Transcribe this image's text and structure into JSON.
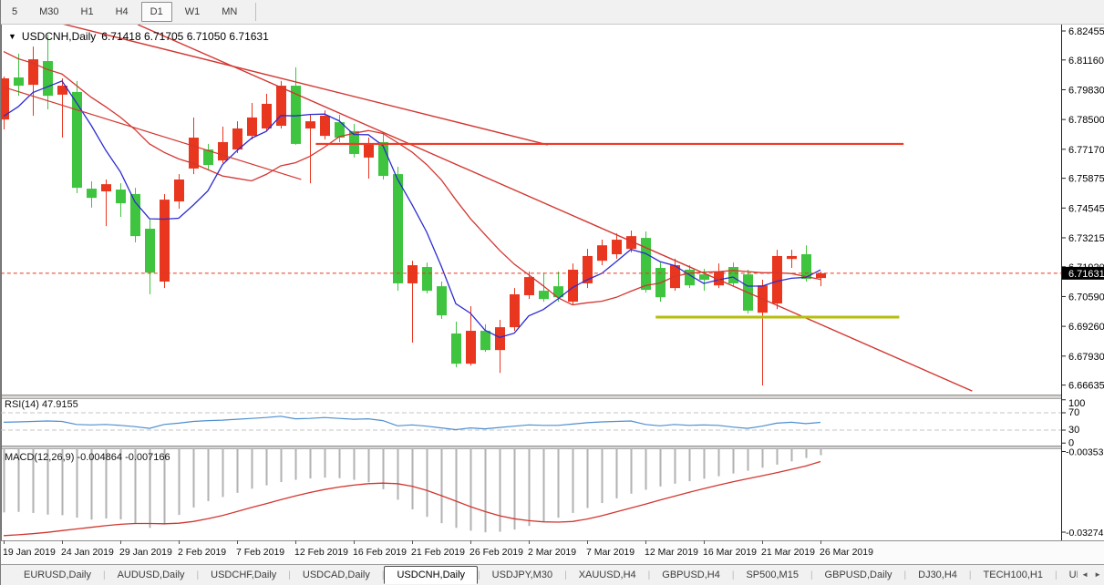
{
  "toolbar": {
    "timeframes": [
      "5",
      "M30",
      "H1",
      "H4",
      "D1",
      "W1",
      "MN"
    ],
    "active": "D1"
  },
  "chart": {
    "title_symbol": "USDCNH,Daily",
    "title_ohlc": "6.71418 6.71705 6.71050 6.71631",
    "dropdown_icon": "symbol-dropdown",
    "current_price": "6.71631",
    "price_axis": [
      "6.82455",
      "6.81160",
      "6.79830",
      "6.78500",
      "6.77170",
      "6.75875",
      "6.74545",
      "6.73215",
      "6.71920",
      "6.70590",
      "6.69260",
      "6.67930",
      "6.66635"
    ],
    "date_axis": {
      "labels": [
        "19 Jan 2019",
        "24 Jan 2019",
        "29 Jan 2019",
        "2 Feb 2019",
        "7 Feb 2019",
        "12 Feb 2019",
        "16 Feb 2019",
        "21 Feb 2019",
        "26 Feb 2019",
        "2 Mar 2019",
        "7 Mar 2019",
        "12 Mar 2019",
        "16 Mar 2019",
        "21 Mar 2019",
        "26 Mar 2019"
      ],
      "bars": [
        0,
        4,
        8,
        12,
        16,
        20,
        24,
        28,
        32,
        36,
        40,
        44,
        48,
        52,
        56
      ]
    }
  },
  "chart_data": {
    "type": "candlestick",
    "symbol": "USDCNH",
    "timeframe": "Daily",
    "ylim": [
      6.66635,
      6.82455
    ],
    "grid": false,
    "candle_columns": [
      "open",
      "high",
      "low",
      "close"
    ],
    "candles": [
      [
        6.785,
        6.8042,
        6.7806,
        6.8034
      ],
      [
        6.8038,
        6.8144,
        6.7956,
        6.8001
      ],
      [
        6.8005,
        6.8176,
        6.7867,
        6.8119
      ],
      [
        6.8111,
        6.8229,
        6.7895,
        6.7956
      ],
      [
        6.7961,
        6.8034,
        6.7769,
        6.8001
      ],
      [
        6.7973,
        6.8022,
        6.7521,
        6.7545
      ],
      [
        6.7541,
        6.7574,
        6.7456,
        6.75
      ],
      [
        6.7529,
        6.7582,
        6.7374,
        6.7561
      ],
      [
        6.7537,
        6.7565,
        6.7415,
        6.7476
      ],
      [
        6.7517,
        6.7545,
        6.7301,
        6.7329
      ],
      [
        6.7362,
        6.7403,
        6.7069,
        6.7166
      ],
      [
        6.7126,
        6.7517,
        6.7097,
        6.7492
      ],
      [
        6.7484,
        6.7606,
        6.7451,
        6.7582
      ],
      [
        6.7631,
        6.7859,
        6.7606,
        6.7769
      ],
      [
        6.7716,
        6.7741,
        6.7627,
        6.7647
      ],
      [
        6.7667,
        6.7818,
        6.7655,
        6.7749
      ],
      [
        6.7716,
        6.7842,
        6.77,
        6.781
      ],
      [
        6.7777,
        6.7924,
        6.7761,
        6.7859
      ],
      [
        6.781,
        6.7965,
        6.7798,
        6.792
      ],
      [
        6.7822,
        6.8022,
        6.781,
        6.8001
      ],
      [
        6.8001,
        6.8083,
        6.7737,
        6.7741
      ],
      [
        6.781,
        6.7871,
        6.7565,
        6.7842
      ],
      [
        6.7777,
        6.7891,
        6.7761,
        6.7867
      ],
      [
        6.7838,
        6.7871,
        6.7749,
        6.7769
      ],
      [
        6.7798,
        6.783,
        6.768,
        6.7696
      ],
      [
        6.768,
        6.7769,
        6.7586,
        6.7737
      ],
      [
        6.7749,
        6.7789,
        6.7582,
        6.7598
      ],
      [
        6.7606,
        6.7639,
        6.7085,
        6.7118
      ],
      [
        6.7118,
        6.7219,
        6.6853,
        6.7199
      ],
      [
        6.7191,
        6.7211,
        6.7073,
        6.7085
      ],
      [
        6.7105,
        6.7126,
        6.6959,
        6.6975
      ],
      [
        6.6894,
        6.6947,
        6.6743,
        6.6759
      ],
      [
        6.6759,
        6.7016,
        6.6751,
        6.6906
      ],
      [
        6.6906,
        6.6935,
        6.6812,
        6.682
      ],
      [
        6.682,
        6.6955,
        6.6718,
        6.6922
      ],
      [
        6.6922,
        6.7097,
        6.6906,
        6.7069
      ],
      [
        6.7065,
        6.7171,
        6.7048,
        6.7146
      ],
      [
        6.7085,
        6.7166,
        6.7036,
        6.7048
      ],
      [
        6.7105,
        6.7171,
        6.7036,
        6.7056
      ],
      [
        6.7036,
        6.7207,
        6.7024,
        6.7179
      ],
      [
        6.7118,
        6.7272,
        6.7097,
        6.724
      ],
      [
        6.7219,
        6.7313,
        6.7199,
        6.7288
      ],
      [
        6.7248,
        6.7341,
        6.7228,
        6.7313
      ],
      [
        6.7272,
        6.7354,
        6.7256,
        6.7329
      ],
      [
        6.7321,
        6.735,
        6.7077,
        6.7089
      ],
      [
        6.7187,
        6.7211,
        6.7036,
        6.7056
      ],
      [
        6.7097,
        6.7228,
        6.7085,
        6.7199
      ],
      [
        6.7179,
        6.7199,
        6.7097,
        6.7109
      ],
      [
        6.7158,
        6.7183,
        6.7085,
        6.7134
      ],
      [
        6.7109,
        6.7207,
        6.7097,
        6.7171
      ],
      [
        6.7191,
        6.7211,
        6.7105,
        6.7118
      ],
      [
        6.7158,
        6.7179,
        6.6983,
        6.6996
      ],
      [
        6.6987,
        6.7134,
        6.6662,
        6.7109
      ],
      [
        6.7028,
        6.7268,
        6.7003,
        6.724
      ],
      [
        6.7227,
        6.7268,
        6.7187,
        6.724
      ],
      [
        6.7248,
        6.7288,
        6.7126,
        6.7138
      ],
      [
        6.71418,
        6.71705,
        6.7105,
        6.71631
      ]
    ],
    "moving_averages": {
      "fast": {
        "period": 5,
        "seed": [
          6.781,
          6.779,
          6.78,
          6.783,
          6.787
        ]
      },
      "slow": {
        "period": 13,
        "seed": [
          6.842,
          6.837,
          6.832,
          6.827,
          6.822,
          6.817,
          6.812,
          6.808,
          6.804,
          6.801,
          6.798,
          6.796
        ]
      }
    },
    "rsi": {
      "label": "RSI(14)",
      "value": "47.9155",
      "levels": [
        100,
        70,
        30,
        0
      ],
      "dashed_levels": [
        70,
        30
      ],
      "values": [
        48,
        49,
        50,
        51,
        50,
        43,
        42,
        43,
        41,
        38,
        34,
        43,
        46,
        50,
        52,
        53,
        55,
        57,
        59,
        62,
        56,
        57,
        59,
        57,
        55,
        56,
        52,
        40,
        42,
        39,
        35,
        31,
        35,
        33,
        36,
        39,
        42,
        41,
        41,
        44,
        47,
        49,
        50,
        51,
        43,
        40,
        43,
        41,
        42,
        41,
        37,
        34,
        39,
        46,
        48,
        45,
        47.9155
      ]
    },
    "macd": {
      "label": "MACD(12,26,9)",
      "value": "-0.004864",
      "signal_value": "-0.007166",
      "axis_labels": [
        "-0.003537",
        "-0.032741"
      ],
      "histogram": [
        -0.0256,
        -0.0254,
        -0.0258,
        -0.0264,
        -0.0266,
        -0.0275,
        -0.0282,
        -0.0278,
        -0.0281,
        -0.0298,
        -0.0312,
        -0.03,
        -0.0265,
        -0.0238,
        -0.0215,
        -0.02,
        -0.0185,
        -0.017,
        -0.0158,
        -0.0146,
        -0.0138,
        -0.0133,
        -0.013,
        -0.0132,
        -0.0138,
        -0.0147,
        -0.0172,
        -0.021,
        -0.0245,
        -0.0272,
        -0.0295,
        -0.0312,
        -0.0322,
        -0.0328,
        -0.0326,
        -0.0318,
        -0.0305,
        -0.029,
        -0.0275,
        -0.0258,
        -0.024,
        -0.0222,
        -0.0205,
        -0.0188,
        -0.0174,
        -0.0162,
        -0.0152,
        -0.0143,
        -0.0134,
        -0.0125,
        -0.0115,
        -0.0105,
        -0.0094,
        -0.0083,
        -0.0071,
        -0.0059,
        -0.004864
      ],
      "signal": [
        -0.034,
        -0.0337,
        -0.0333,
        -0.0328,
        -0.0322,
        -0.0316,
        -0.031,
        -0.0304,
        -0.0299,
        -0.0296,
        -0.0296,
        -0.0297,
        -0.0295,
        -0.0289,
        -0.0279,
        -0.0267,
        -0.0253,
        -0.0238,
        -0.0224,
        -0.021,
        -0.0196,
        -0.0184,
        -0.0173,
        -0.0164,
        -0.0157,
        -0.0152,
        -0.015,
        -0.0152,
        -0.0161,
        -0.0176,
        -0.0195,
        -0.0215,
        -0.0235,
        -0.0253,
        -0.0268,
        -0.0279,
        -0.0286,
        -0.029,
        -0.0291,
        -0.0289,
        -0.028,
        -0.0268,
        -0.0254,
        -0.024,
        -0.0226,
        -0.0211,
        -0.0197,
        -0.0183,
        -0.017,
        -0.0157,
        -0.0145,
        -0.0134,
        -0.0123,
        -0.0112,
        -0.01,
        -0.0088,
        -0.007166
      ]
    },
    "annotations": [
      {
        "name": "descending-trendline",
        "type": "trendline",
        "color_key": "trend_line",
        "width": 1.4,
        "points": [
          [
            9.2,
            6.8274
          ],
          [
            66.4,
            6.6637
          ]
        ]
      },
      {
        "name": "descending-trendline-2",
        "type": "trendline",
        "color_key": "trend_line",
        "width": 1.4,
        "points": [
          [
            0,
            6.8343
          ],
          [
            37.3,
            6.7737
          ]
        ]
      },
      {
        "name": "descending-trendline-3",
        "type": "trendline",
        "color_key": "trend_line",
        "width": 1.2,
        "points": [
          [
            0.1,
            6.7993
          ],
          [
            20.4,
            6.7582
          ]
        ]
      },
      {
        "name": "resistance-line",
        "type": "hline",
        "color_key": "resistance_line",
        "width": 2.2,
        "price": 6.7741,
        "bar_from": 21.4,
        "bar_to": 61.7
      },
      {
        "name": "support-line",
        "type": "hline",
        "color_key": "support_line",
        "width": 3,
        "price": 6.6967,
        "bar_from": 44.7,
        "bar_to": 61.4
      },
      {
        "name": "current-price-line",
        "type": "hline",
        "color_key": "price_line",
        "width": 1,
        "dash": "4,3",
        "price": 6.71631,
        "bar_from": -0.2,
        "bar_to": 72.5
      }
    ],
    "colors": {
      "bull": "#e8361f",
      "bear": "#3ec43e",
      "ma_fast": "#2b2bd1",
      "ma_slow": "#d23630",
      "rsi_line": "#4e8fd0",
      "grid_dash": "#c4c4c4",
      "macd_hist": "#b2b2b2",
      "macd_signal": "#d23630",
      "trend_line": "#d23630",
      "resistance_line": "#f03a28",
      "support_line": "#b5bf0a",
      "price_line": "#e8361f",
      "badge_bg": "#000000",
      "badge_text": "#ffffff"
    }
  },
  "tabs": {
    "items": [
      "EURUSD,Daily",
      "AUDUSD,Daily",
      "USDCHF,Daily",
      "USDCAD,Daily",
      "USDCNH,Daily",
      "USDJPY,M30",
      "XAUUSD,H4",
      "GBPUSD,H4",
      "SP500,M15",
      "GBPUSD,Daily",
      "DJ30,H4",
      "TECH100,H1",
      "UI"
    ],
    "active": "USDCNH,Daily",
    "scroll_left_icon": "◄",
    "scroll_right_icon": "►"
  }
}
